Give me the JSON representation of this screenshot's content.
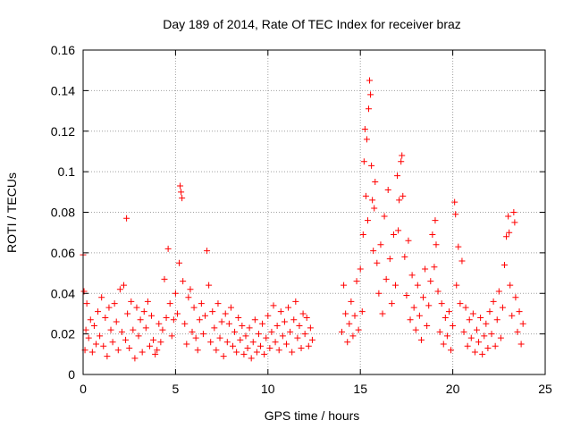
{
  "chart_data": {
    "type": "scatter",
    "title": "Day 189 of 2014, Rate Of TEC Index for receiver braz",
    "xlabel": "GPS time / hours",
    "ylabel": "ROTI / TECUs",
    "xlim": [
      0,
      25
    ],
    "ylim": [
      0,
      0.16
    ],
    "xticks": [
      0,
      5,
      10,
      15,
      20,
      25
    ],
    "xtick_labels": [
      "0",
      "5",
      "10",
      "15",
      "20",
      "25"
    ],
    "yticks": [
      0,
      0.02,
      0.04,
      0.06,
      0.08,
      0.1,
      0.12,
      0.14,
      0.16
    ],
    "ytick_labels": [
      "0",
      "0.02",
      "0.04",
      "0.06",
      "0.08",
      "0.1",
      "0.12",
      "0.14",
      "0.16"
    ],
    "grid": true,
    "marker": "+",
    "color": "#ff0000",
    "series": [
      {
        "name": "ROTI",
        "points": [
          [
            0.0,
            0.059
          ],
          [
            0.05,
            0.041
          ],
          [
            0.1,
            0.012
          ],
          [
            0.15,
            0.022
          ],
          [
            0.2,
            0.035
          ],
          [
            0.3,
            0.018
          ],
          [
            0.4,
            0.027
          ],
          [
            0.5,
            0.011
          ],
          [
            0.6,
            0.024
          ],
          [
            0.7,
            0.015
          ],
          [
            0.8,
            0.031
          ],
          [
            0.9,
            0.019
          ],
          [
            1.0,
            0.038
          ],
          [
            1.1,
            0.014
          ],
          [
            1.2,
            0.028
          ],
          [
            1.3,
            0.009
          ],
          [
            1.4,
            0.033
          ],
          [
            1.5,
            0.022
          ],
          [
            1.6,
            0.016
          ],
          [
            1.7,
            0.035
          ],
          [
            1.8,
            0.026
          ],
          [
            1.9,
            0.012
          ],
          [
            2.0,
            0.042
          ],
          [
            2.1,
            0.021
          ],
          [
            2.2,
            0.044
          ],
          [
            2.3,
            0.017
          ],
          [
            2.35,
            0.077
          ],
          [
            2.4,
            0.03
          ],
          [
            2.5,
            0.013
          ],
          [
            2.6,
            0.036
          ],
          [
            2.7,
            0.022
          ],
          [
            2.8,
            0.008
          ],
          [
            2.9,
            0.033
          ],
          [
            3.0,
            0.019
          ],
          [
            3.1,
            0.027
          ],
          [
            3.2,
            0.011
          ],
          [
            3.3,
            0.031
          ],
          [
            3.4,
            0.023
          ],
          [
            3.5,
            0.036
          ],
          [
            3.6,
            0.014
          ],
          [
            3.7,
            0.029
          ],
          [
            3.8,
            0.017
          ],
          [
            3.9,
            0.01
          ],
          [
            4.0,
            0.012
          ],
          [
            4.1,
            0.025
          ],
          [
            4.2,
            0.016
          ],
          [
            4.3,
            0.022
          ],
          [
            4.4,
            0.047
          ],
          [
            4.5,
            0.028
          ],
          [
            4.6,
            0.062
          ],
          [
            4.7,
            0.035
          ],
          [
            4.8,
            0.019
          ],
          [
            4.9,
            0.027
          ],
          [
            5.0,
            0.04
          ],
          [
            5.1,
            0.03
          ],
          [
            5.2,
            0.055
          ],
          [
            5.25,
            0.093
          ],
          [
            5.3,
            0.09
          ],
          [
            5.35,
            0.087
          ],
          [
            5.4,
            0.046
          ],
          [
            5.5,
            0.025
          ],
          [
            5.6,
            0.015
          ],
          [
            5.7,
            0.038
          ],
          [
            5.8,
            0.042
          ],
          [
            5.9,
            0.021
          ],
          [
            6.0,
            0.033
          ],
          [
            6.1,
            0.018
          ],
          [
            6.2,
            0.012
          ],
          [
            6.3,
            0.027
          ],
          [
            6.4,
            0.035
          ],
          [
            6.5,
            0.02
          ],
          [
            6.6,
            0.029
          ],
          [
            6.7,
            0.061
          ],
          [
            6.8,
            0.044
          ],
          [
            6.9,
            0.016
          ],
          [
            7.0,
            0.031
          ],
          [
            7.1,
            0.023
          ],
          [
            7.2,
            0.012
          ],
          [
            7.3,
            0.035
          ],
          [
            7.4,
            0.018
          ],
          [
            7.5,
            0.026
          ],
          [
            7.6,
            0.009
          ],
          [
            7.7,
            0.03
          ],
          [
            7.8,
            0.016
          ],
          [
            7.9,
            0.025
          ],
          [
            8.0,
            0.033
          ],
          [
            8.1,
            0.014
          ],
          [
            8.2,
            0.021
          ],
          [
            8.3,
            0.011
          ],
          [
            8.4,
            0.028
          ],
          [
            8.5,
            0.017
          ],
          [
            8.6,
            0.024
          ],
          [
            8.7,
            0.01
          ],
          [
            8.8,
            0.019
          ],
          [
            8.9,
            0.013
          ],
          [
            9.0,
            0.023
          ],
          [
            9.1,
            0.008
          ],
          [
            9.2,
            0.016
          ],
          [
            9.3,
            0.027
          ],
          [
            9.4,
            0.011
          ],
          [
            9.5,
            0.02
          ],
          [
            9.6,
            0.014
          ],
          [
            9.7,
            0.025
          ],
          [
            9.8,
            0.01
          ],
          [
            9.9,
            0.018
          ],
          [
            10.0,
            0.029
          ],
          [
            10.1,
            0.013
          ],
          [
            10.2,
            0.021
          ],
          [
            10.3,
            0.034
          ],
          [
            10.4,
            0.016
          ],
          [
            10.5,
            0.024
          ],
          [
            10.6,
            0.012
          ],
          [
            10.7,
            0.031
          ],
          [
            10.8,
            0.019
          ],
          [
            10.9,
            0.026
          ],
          [
            11.0,
            0.015
          ],
          [
            11.1,
            0.033
          ],
          [
            11.2,
            0.021
          ],
          [
            11.3,
            0.011
          ],
          [
            11.4,
            0.027
          ],
          [
            11.5,
            0.036
          ],
          [
            11.6,
            0.018
          ],
          [
            11.7,
            0.024
          ],
          [
            11.8,
            0.013
          ],
          [
            11.9,
            0.03
          ],
          [
            12.0,
            0.02
          ],
          [
            12.1,
            0.028
          ],
          [
            12.2,
            0.014
          ],
          [
            12.3,
            0.023
          ],
          [
            12.4,
            0.017
          ],
          [
            14.0,
            0.021
          ],
          [
            14.1,
            0.044
          ],
          [
            14.2,
            0.03
          ],
          [
            14.3,
            0.016
          ],
          [
            14.4,
            0.025
          ],
          [
            14.5,
            0.036
          ],
          [
            14.6,
            0.019
          ],
          [
            14.7,
            0.029
          ],
          [
            14.8,
            0.046
          ],
          [
            14.9,
            0.022
          ],
          [
            15.0,
            0.052
          ],
          [
            15.1,
            0.031
          ],
          [
            15.15,
            0.069
          ],
          [
            15.2,
            0.105
          ],
          [
            15.25,
            0.121
          ],
          [
            15.3,
            0.088
          ],
          [
            15.35,
            0.116
          ],
          [
            15.4,
            0.076
          ],
          [
            15.45,
            0.131
          ],
          [
            15.5,
            0.145
          ],
          [
            15.55,
            0.138
          ],
          [
            15.6,
            0.103
          ],
          [
            15.65,
            0.086
          ],
          [
            15.7,
            0.061
          ],
          [
            15.75,
            0.082
          ],
          [
            15.8,
            0.095
          ],
          [
            15.9,
            0.055
          ],
          [
            16.0,
            0.04
          ],
          [
            16.1,
            0.064
          ],
          [
            16.2,
            0.03
          ],
          [
            16.3,
            0.078
          ],
          [
            16.4,
            0.047
          ],
          [
            16.5,
            0.091
          ],
          [
            16.6,
            0.057
          ],
          [
            16.7,
            0.035
          ],
          [
            16.8,
            0.069
          ],
          [
            16.9,
            0.044
          ],
          [
            17.0,
            0.098
          ],
          [
            17.05,
            0.071
          ],
          [
            17.1,
            0.086
          ],
          [
            17.2,
            0.105
          ],
          [
            17.25,
            0.108
          ],
          [
            17.3,
            0.088
          ],
          [
            17.4,
            0.058
          ],
          [
            17.5,
            0.039
          ],
          [
            17.6,
            0.066
          ],
          [
            17.7,
            0.027
          ],
          [
            17.8,
            0.049
          ],
          [
            17.9,
            0.033
          ],
          [
            18.0,
            0.022
          ],
          [
            18.1,
            0.044
          ],
          [
            18.2,
            0.029
          ],
          [
            18.3,
            0.017
          ],
          [
            18.4,
            0.038
          ],
          [
            18.5,
            0.052
          ],
          [
            18.6,
            0.024
          ],
          [
            18.7,
            0.034
          ],
          [
            18.8,
            0.046
          ],
          [
            18.9,
            0.069
          ],
          [
            19.0,
            0.053
          ],
          [
            19.05,
            0.076
          ],
          [
            19.1,
            0.064
          ],
          [
            19.2,
            0.041
          ],
          [
            19.3,
            0.021
          ],
          [
            19.4,
            0.035
          ],
          [
            19.5,
            0.015
          ],
          [
            19.6,
            0.028
          ],
          [
            19.7,
            0.019
          ],
          [
            19.8,
            0.031
          ],
          [
            19.9,
            0.012
          ],
          [
            20.0,
            0.024
          ],
          [
            20.1,
            0.085
          ],
          [
            20.15,
            0.079
          ],
          [
            20.2,
            0.044
          ],
          [
            20.3,
            0.063
          ],
          [
            20.4,
            0.035
          ],
          [
            20.5,
            0.056
          ],
          [
            20.6,
            0.021
          ],
          [
            20.7,
            0.033
          ],
          [
            20.8,
            0.014
          ],
          [
            20.9,
            0.027
          ],
          [
            21.0,
            0.018
          ],
          [
            21.1,
            0.03
          ],
          [
            21.2,
            0.011
          ],
          [
            21.3,
            0.022
          ],
          [
            21.4,
            0.016
          ],
          [
            21.5,
            0.028
          ],
          [
            21.6,
            0.01
          ],
          [
            21.7,
            0.019
          ],
          [
            21.8,
            0.025
          ],
          [
            21.9,
            0.013
          ],
          [
            22.0,
            0.031
          ],
          [
            22.1,
            0.02
          ],
          [
            22.2,
            0.036
          ],
          [
            22.3,
            0.014
          ],
          [
            22.4,
            0.027
          ],
          [
            22.5,
            0.041
          ],
          [
            22.6,
            0.018
          ],
          [
            22.7,
            0.033
          ],
          [
            22.8,
            0.054
          ],
          [
            22.9,
            0.068
          ],
          [
            23.0,
            0.078
          ],
          [
            23.05,
            0.07
          ],
          [
            23.1,
            0.044
          ],
          [
            23.2,
            0.029
          ],
          [
            23.3,
            0.08
          ],
          [
            23.35,
            0.075
          ],
          [
            23.4,
            0.038
          ],
          [
            23.5,
            0.021
          ],
          [
            23.6,
            0.031
          ],
          [
            23.7,
            0.015
          ],
          [
            23.8,
            0.025
          ]
        ]
      }
    ]
  }
}
